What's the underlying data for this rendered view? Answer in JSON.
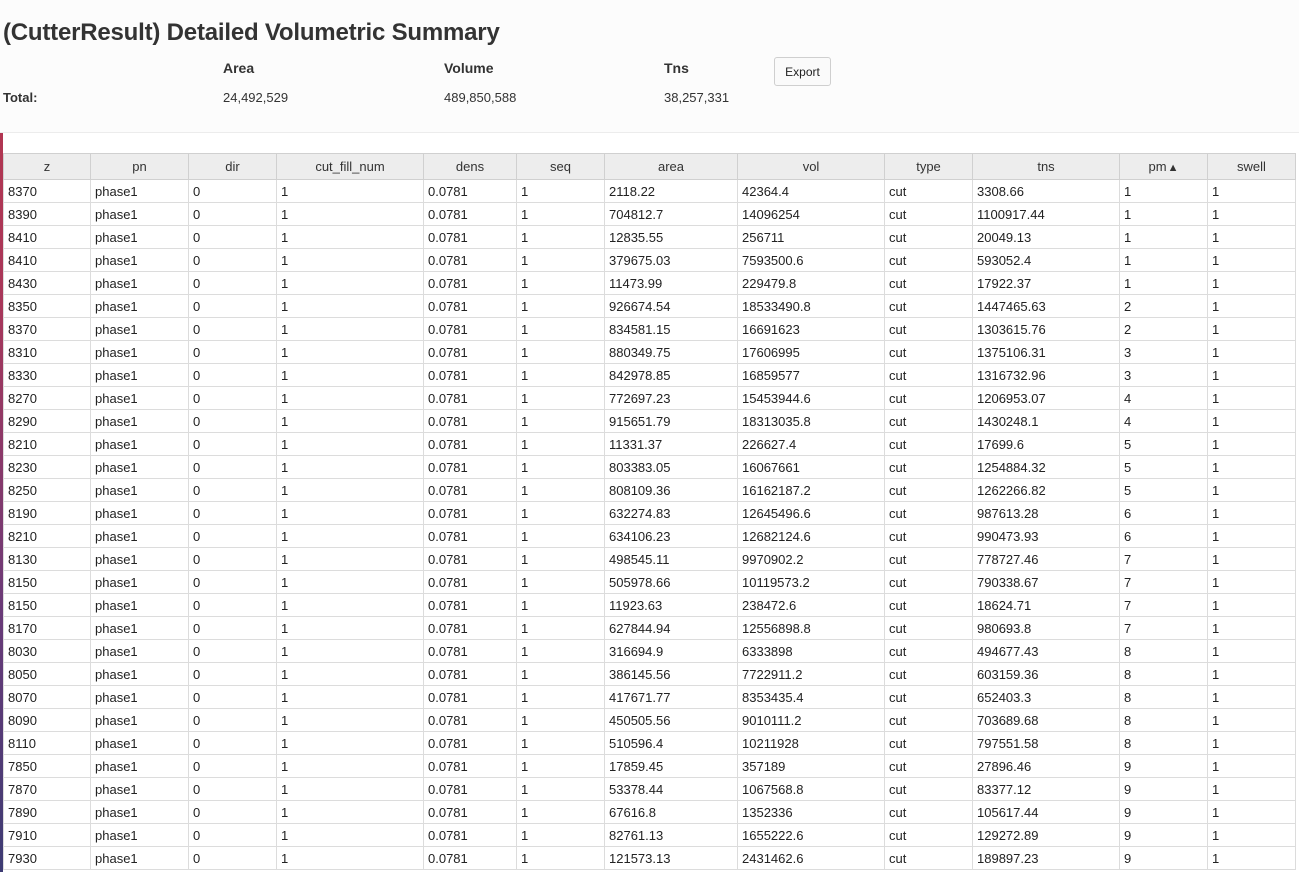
{
  "title": "(CutterResult) Detailed Volumetric Summary",
  "summary": {
    "headers": {
      "area": "Area",
      "volume": "Volume",
      "tns": "Tns"
    },
    "total_label": "Total:",
    "totals": {
      "area": "24,492,529",
      "volume": "489,850,588",
      "tns": "38,257,331"
    },
    "export_label": "Export"
  },
  "table": {
    "columns": [
      "z",
      "pn",
      "dir",
      "cut_fill_num",
      "dens",
      "seq",
      "area",
      "vol",
      "type",
      "tns",
      "pm",
      "swell"
    ],
    "sort": {
      "column": "pm",
      "direction": "ascending"
    },
    "rows": [
      [
        "8370",
        "phase1",
        "0",
        "1",
        "0.0781",
        "1",
        "2118.22",
        "42364.4",
        "cut",
        "3308.66",
        "1",
        "1"
      ],
      [
        "8390",
        "phase1",
        "0",
        "1",
        "0.0781",
        "1",
        "704812.7",
        "14096254",
        "cut",
        "1100917.44",
        "1",
        "1"
      ],
      [
        "8410",
        "phase1",
        "0",
        "1",
        "0.0781",
        "1",
        "12835.55",
        "256711",
        "cut",
        "20049.13",
        "1",
        "1"
      ],
      [
        "8410",
        "phase1",
        "0",
        "1",
        "0.0781",
        "1",
        "379675.03",
        "7593500.6",
        "cut",
        "593052.4",
        "1",
        "1"
      ],
      [
        "8430",
        "phase1",
        "0",
        "1",
        "0.0781",
        "1",
        "11473.99",
        "229479.8",
        "cut",
        "17922.37",
        "1",
        "1"
      ],
      [
        "8350",
        "phase1",
        "0",
        "1",
        "0.0781",
        "1",
        "926674.54",
        "18533490.8",
        "cut",
        "1447465.63",
        "2",
        "1"
      ],
      [
        "8370",
        "phase1",
        "0",
        "1",
        "0.0781",
        "1",
        "834581.15",
        "16691623",
        "cut",
        "1303615.76",
        "2",
        "1"
      ],
      [
        "8310",
        "phase1",
        "0",
        "1",
        "0.0781",
        "1",
        "880349.75",
        "17606995",
        "cut",
        "1375106.31",
        "3",
        "1"
      ],
      [
        "8330",
        "phase1",
        "0",
        "1",
        "0.0781",
        "1",
        "842978.85",
        "16859577",
        "cut",
        "1316732.96",
        "3",
        "1"
      ],
      [
        "8270",
        "phase1",
        "0",
        "1",
        "0.0781",
        "1",
        "772697.23",
        "15453944.6",
        "cut",
        "1206953.07",
        "4",
        "1"
      ],
      [
        "8290",
        "phase1",
        "0",
        "1",
        "0.0781",
        "1",
        "915651.79",
        "18313035.8",
        "cut",
        "1430248.1",
        "4",
        "1"
      ],
      [
        "8210",
        "phase1",
        "0",
        "1",
        "0.0781",
        "1",
        "11331.37",
        "226627.4",
        "cut",
        "17699.6",
        "5",
        "1"
      ],
      [
        "8230",
        "phase1",
        "0",
        "1",
        "0.0781",
        "1",
        "803383.05",
        "16067661",
        "cut",
        "1254884.32",
        "5",
        "1"
      ],
      [
        "8250",
        "phase1",
        "0",
        "1",
        "0.0781",
        "1",
        "808109.36",
        "16162187.2",
        "cut",
        "1262266.82",
        "5",
        "1"
      ],
      [
        "8190",
        "phase1",
        "0",
        "1",
        "0.0781",
        "1",
        "632274.83",
        "12645496.6",
        "cut",
        "987613.28",
        "6",
        "1"
      ],
      [
        "8210",
        "phase1",
        "0",
        "1",
        "0.0781",
        "1",
        "634106.23",
        "12682124.6",
        "cut",
        "990473.93",
        "6",
        "1"
      ],
      [
        "8130",
        "phase1",
        "0",
        "1",
        "0.0781",
        "1",
        "498545.11",
        "9970902.2",
        "cut",
        "778727.46",
        "7",
        "1"
      ],
      [
        "8150",
        "phase1",
        "0",
        "1",
        "0.0781",
        "1",
        "505978.66",
        "10119573.2",
        "cut",
        "790338.67",
        "7",
        "1"
      ],
      [
        "8150",
        "phase1",
        "0",
        "1",
        "0.0781",
        "1",
        "11923.63",
        "238472.6",
        "cut",
        "18624.71",
        "7",
        "1"
      ],
      [
        "8170",
        "phase1",
        "0",
        "1",
        "0.0781",
        "1",
        "627844.94",
        "12556898.8",
        "cut",
        "980693.8",
        "7",
        "1"
      ],
      [
        "8030",
        "phase1",
        "0",
        "1",
        "0.0781",
        "1",
        "316694.9",
        "6333898",
        "cut",
        "494677.43",
        "8",
        "1"
      ],
      [
        "8050",
        "phase1",
        "0",
        "1",
        "0.0781",
        "1",
        "386145.56",
        "7722911.2",
        "cut",
        "603159.36",
        "8",
        "1"
      ],
      [
        "8070",
        "phase1",
        "0",
        "1",
        "0.0781",
        "1",
        "417671.77",
        "8353435.4",
        "cut",
        "652403.3",
        "8",
        "1"
      ],
      [
        "8090",
        "phase1",
        "0",
        "1",
        "0.0781",
        "1",
        "450505.56",
        "9010111.2",
        "cut",
        "703689.68",
        "8",
        "1"
      ],
      [
        "8110",
        "phase1",
        "0",
        "1",
        "0.0781",
        "1",
        "510596.4",
        "10211928",
        "cut",
        "797551.58",
        "8",
        "1"
      ],
      [
        "7850",
        "phase1",
        "0",
        "1",
        "0.0781",
        "1",
        "17859.45",
        "357189",
        "cut",
        "27896.46",
        "9",
        "1"
      ],
      [
        "7870",
        "phase1",
        "0",
        "1",
        "0.0781",
        "1",
        "53378.44",
        "1067568.8",
        "cut",
        "83377.12",
        "9",
        "1"
      ],
      [
        "7890",
        "phase1",
        "0",
        "1",
        "0.0781",
        "1",
        "67616.8",
        "1352336",
        "cut",
        "105617.44",
        "9",
        "1"
      ],
      [
        "7910",
        "phase1",
        "0",
        "1",
        "0.0781",
        "1",
        "82761.13",
        "1655222.6",
        "cut",
        "129272.89",
        "9",
        "1"
      ],
      [
        "7930",
        "phase1",
        "0",
        "1",
        "0.0781",
        "1",
        "121573.13",
        "2431462.6",
        "cut",
        "189897.23",
        "9",
        "1"
      ]
    ]
  }
}
